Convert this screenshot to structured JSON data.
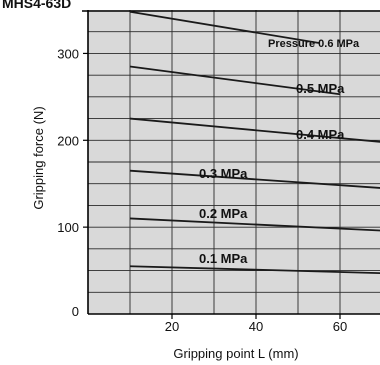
{
  "header_fragment": "MHS4-63D",
  "chart_data": {
    "type": "line",
    "xlabel": "Gripping point  L (mm)",
    "ylabel": "Gripping force (N)",
    "xlim": [
      0,
      70
    ],
    "ylim": [
      0,
      350
    ],
    "x_ticks": [
      0,
      20,
      40,
      60
    ],
    "y_ticks": [
      0,
      100,
      200,
      300
    ],
    "x_grid_step": 10,
    "y_grid_step": 25,
    "grid": true,
    "background_color": "#d9d9d9",
    "line_color": "#1a1a1a",
    "series": [
      {
        "name": "Pressure 0.6 MPa",
        "x": [
          10,
          55
        ],
        "y": [
          348,
          312
        ]
      },
      {
        "name": "0.5 MPa",
        "x": [
          10,
          60
        ],
        "y": [
          285,
          253
        ]
      },
      {
        "name": "0.4 MPa",
        "x": [
          10,
          70
        ],
        "y": [
          225,
          198
        ]
      },
      {
        "name": "0.3 MPa",
        "x": [
          10,
          70
        ],
        "y": [
          165,
          145
        ]
      },
      {
        "name": "0.2 MPa",
        "x": [
          10,
          70
        ],
        "y": [
          110,
          96
        ]
      },
      {
        "name": "0.1 MPa",
        "x": [
          10,
          70
        ],
        "y": [
          55,
          47
        ]
      }
    ]
  }
}
